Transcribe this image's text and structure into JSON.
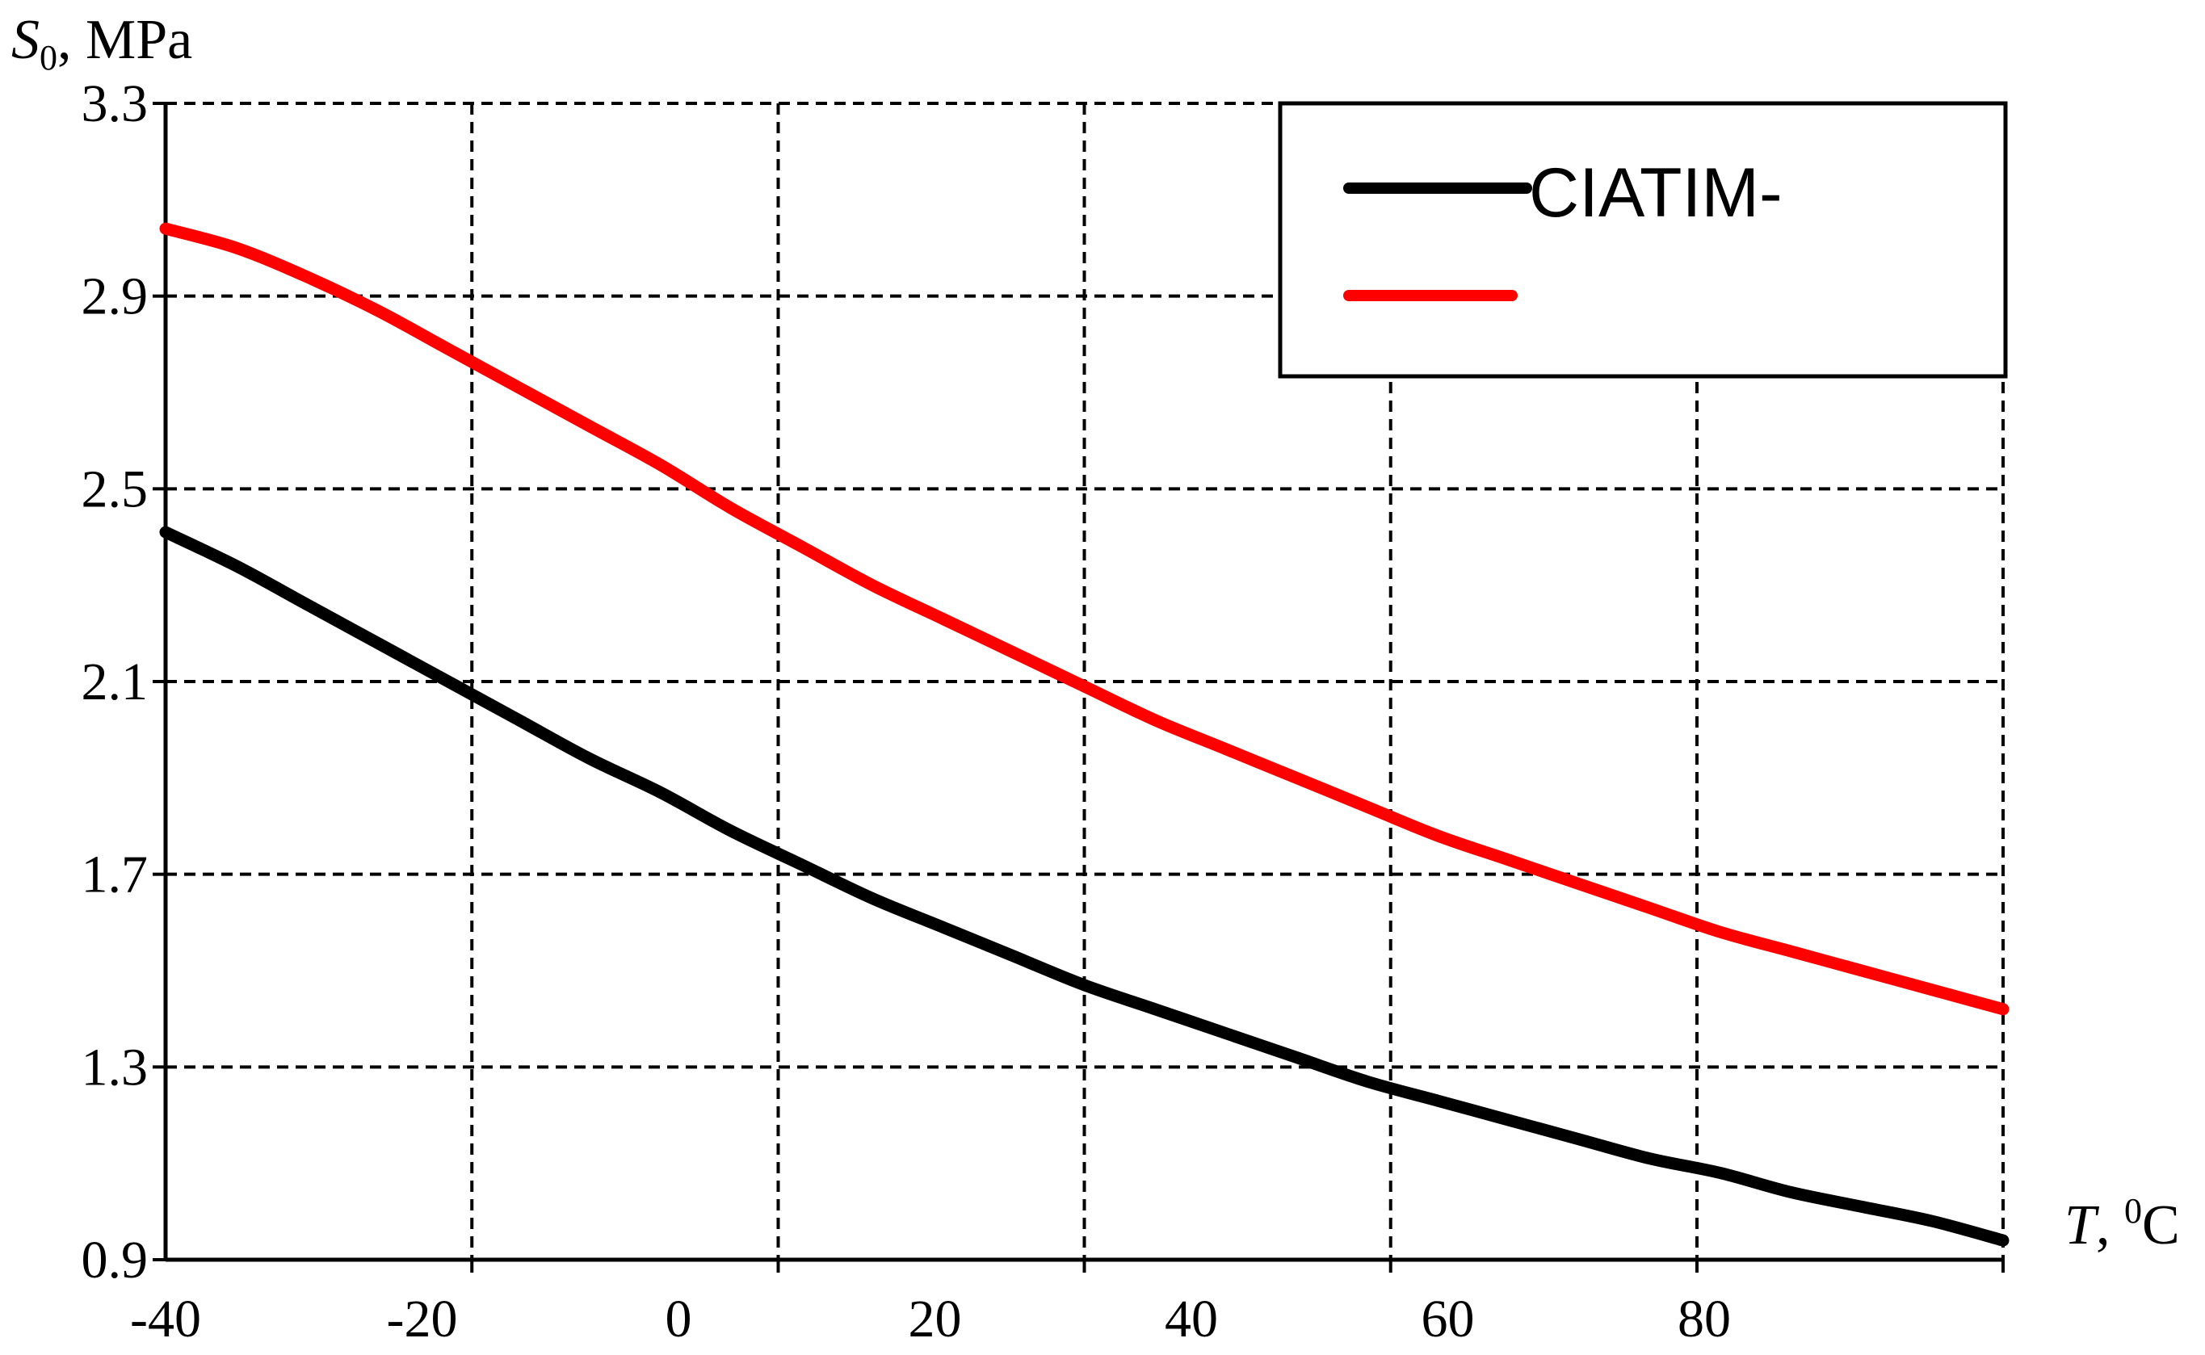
{
  "chart_data": {
    "type": "line",
    "title": "",
    "xlabel": {
      "symbol": "T",
      "unit_sup": "0",
      "unit": "C"
    },
    "ylabel": {
      "symbol": "S",
      "sub": "0",
      "unit": "MPa"
    },
    "xlim": [
      -40,
      90
    ],
    "ylim": [
      0.9,
      3.3
    ],
    "x_tick_labels": [
      "-40",
      "-20",
      "0",
      "20",
      "40",
      "60",
      "80"
    ],
    "y_ticks": [
      0.9,
      1.3,
      1.7,
      2.1,
      2.5,
      2.9,
      3.3
    ],
    "y_tick_labels": [
      "0.9",
      "1.3",
      "1.7",
      "2.1",
      "2.5",
      "2.9",
      "3.3"
    ],
    "grid": true,
    "legend_position": "top-right",
    "series": [
      {
        "name": "CIATIM-",
        "color": "#000000",
        "x": [
          -40,
          -35,
          -30,
          -25,
          -20,
          -15,
          -10,
          -5,
          0,
          5,
          10,
          15,
          20,
          25,
          30,
          35,
          40,
          45,
          50,
          55,
          60,
          65,
          70,
          75,
          80,
          85,
          90
        ],
        "y": [
          2.41,
          2.34,
          2.26,
          2.18,
          2.1,
          2.02,
          1.94,
          1.87,
          1.79,
          1.72,
          1.65,
          1.59,
          1.53,
          1.47,
          1.42,
          1.37,
          1.32,
          1.27,
          1.23,
          1.19,
          1.15,
          1.11,
          1.08,
          1.04,
          1.01,
          0.98,
          0.94
        ]
      },
      {
        "name": "",
        "color": "#ff0000",
        "x": [
          -40,
          -35,
          -30,
          -25,
          -20,
          -15,
          -10,
          -5,
          0,
          5,
          10,
          15,
          20,
          25,
          30,
          35,
          40,
          45,
          50,
          55,
          60,
          65,
          70,
          75,
          80,
          85,
          90
        ],
        "y": [
          3.04,
          3.0,
          2.94,
          2.87,
          2.79,
          2.71,
          2.63,
          2.55,
          2.46,
          2.38,
          2.3,
          2.23,
          2.16,
          2.09,
          2.02,
          1.96,
          1.9,
          1.84,
          1.78,
          1.73,
          1.68,
          1.63,
          1.58,
          1.54,
          1.5,
          1.46,
          1.42
        ]
      }
    ]
  }
}
